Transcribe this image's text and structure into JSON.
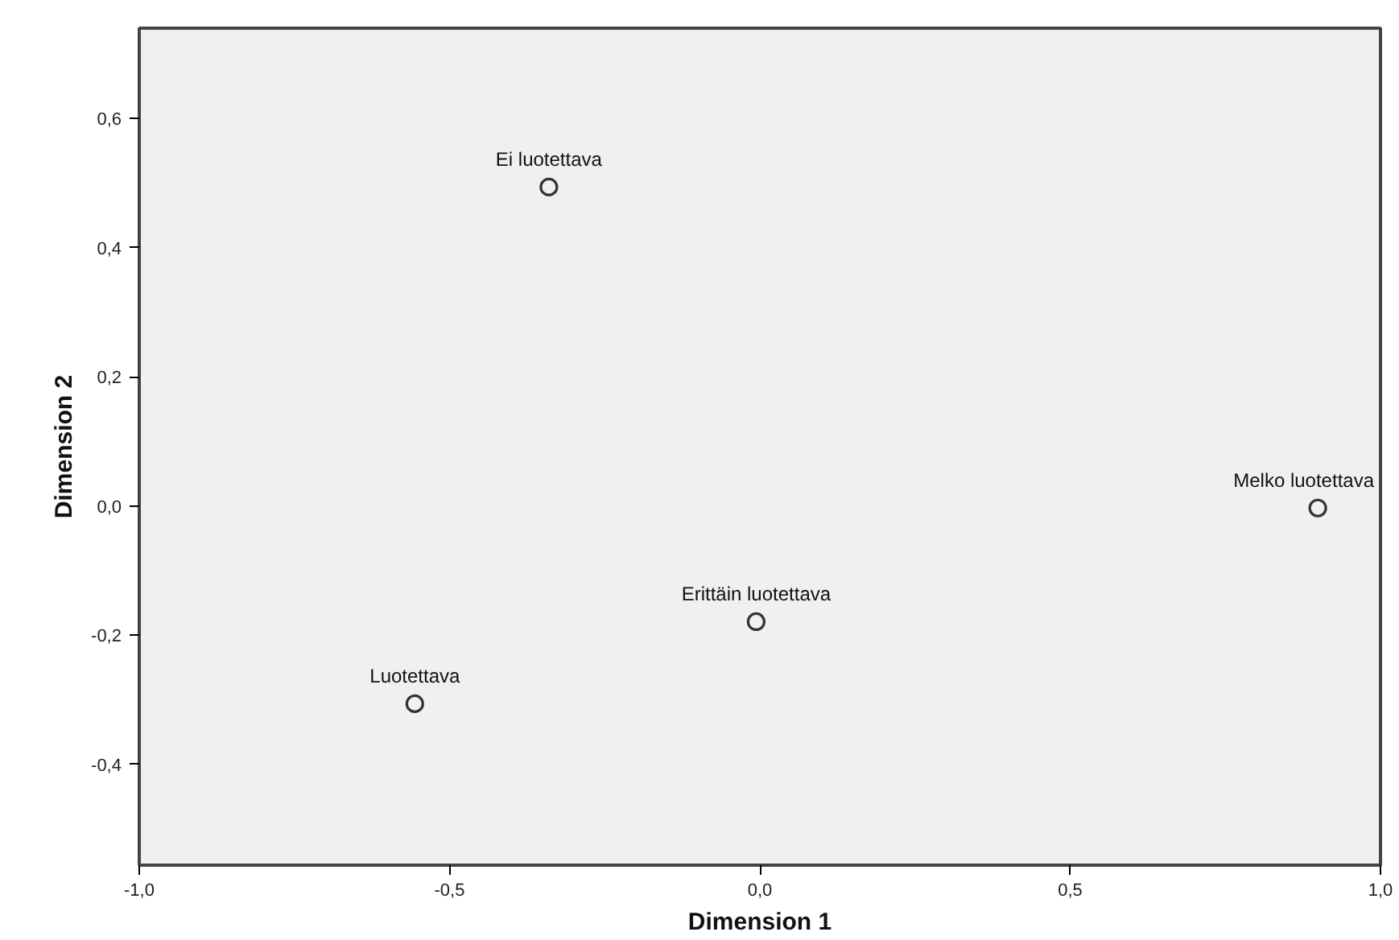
{
  "chart_data": {
    "type": "scatter",
    "xlabel": "Dimension 1",
    "ylabel": "Dimension 2",
    "series": [
      {
        "color": "#333333",
        "x": [
          -0.34,
          -0.556,
          -0.006,
          0.899
        ],
        "values": [
          0.494,
          -0.306,
          -0.179,
          -0.003
        ]
      }
    ],
    "marker": "circle",
    "xlim": [
      -1.0,
      1.0
    ],
    "ylim": [
      -0.556,
      0.74
    ],
    "xticks": [
      {
        "value": -1.0,
        "label": "-1,0"
      },
      {
        "value": -0.5,
        "label": "-0,5"
      },
      {
        "value": 0.0,
        "label": "0,0"
      },
      {
        "value": 0.5,
        "label": "0,5"
      },
      {
        "value": 1.0,
        "label": "1,0"
      }
    ],
    "yticks": [
      {
        "value": -0.4,
        "label": "-0,4"
      },
      {
        "value": -0.2,
        "label": "-0,2"
      },
      {
        "value": 0.0,
        "label": "0,0"
      },
      {
        "value": 0.2,
        "label": "0,2"
      },
      {
        "value": 0.4,
        "label": "0,4"
      },
      {
        "value": 0.6,
        "label": "0,6"
      }
    ],
    "annotations": [
      {
        "text": "Ei luotettava",
        "x": -0.34,
        "y": 0.494
      },
      {
        "text": "Luotettava",
        "x": -0.556,
        "y": -0.306
      },
      {
        "text": "Erittäin luotettava",
        "x": -0.006,
        "y": -0.179
      },
      {
        "text": "Melko luotettava",
        "x": 0.899,
        "y": -0.003
      }
    ]
  }
}
